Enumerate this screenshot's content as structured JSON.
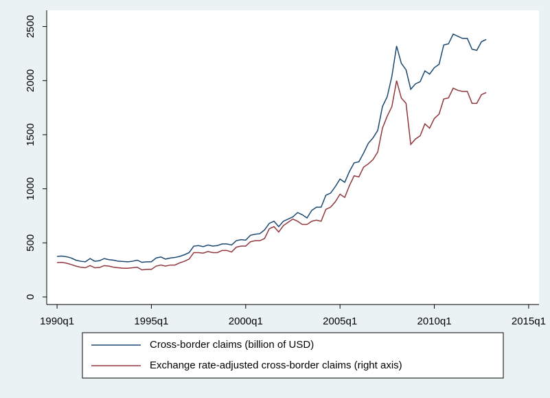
{
  "chart_data": {
    "type": "line",
    "x": [
      1990,
      1990.25,
      1990.5,
      1990.75,
      1991,
      1991.25,
      1991.5,
      1991.75,
      1992,
      1992.25,
      1992.5,
      1992.75,
      1993,
      1993.25,
      1993.5,
      1993.75,
      1994,
      1994.25,
      1994.5,
      1994.75,
      1995,
      1995.25,
      1995.5,
      1995.75,
      1996,
      1996.25,
      1996.5,
      1996.75,
      1997,
      1997.25,
      1997.5,
      1997.75,
      1998,
      1998.25,
      1998.5,
      1998.75,
      1999,
      1999.25,
      1999.5,
      1999.75,
      2000,
      2000.25,
      2000.5,
      2000.75,
      2001,
      2001.25,
      2001.5,
      2001.75,
      2002,
      2002.25,
      2002.5,
      2002.75,
      2003,
      2003.25,
      2003.5,
      2003.75,
      2004,
      2004.25,
      2004.5,
      2004.75,
      2005,
      2005.25,
      2005.5,
      2005.75,
      2006,
      2006.25,
      2006.5,
      2006.75,
      2007,
      2007.25,
      2007.5,
      2007.75,
      2008,
      2008.25,
      2008.5,
      2008.75,
      2009,
      2009.25,
      2009.5,
      2009.75,
      2010,
      2010.25,
      2010.5,
      2010.75,
      2011,
      2011.25,
      2011.5,
      2011.75,
      2012,
      2012.25,
      2012.5,
      2012.75
    ],
    "series": [
      {
        "name": "Cross-border claims (billion of USD)",
        "color": "#1a476f",
        "values": [
          375,
          378,
          372,
          360,
          340,
          330,
          325,
          355,
          330,
          335,
          355,
          345,
          340,
          330,
          328,
          325,
          330,
          340,
          320,
          325,
          325,
          360,
          370,
          350,
          360,
          365,
          375,
          390,
          410,
          470,
          475,
          465,
          480,
          470,
          475,
          490,
          490,
          480,
          520,
          530,
          525,
          570,
          580,
          585,
          620,
          680,
          700,
          650,
          700,
          720,
          740,
          780,
          760,
          730,
          800,
          830,
          830,
          940,
          960,
          1020,
          1090,
          1060,
          1160,
          1240,
          1250,
          1330,
          1420,
          1470,
          1540,
          1760,
          1850,
          2040,
          2320,
          2160,
          2100,
          1920,
          1970,
          1990,
          2090,
          2060,
          2120,
          2150,
          2330,
          2340,
          2430,
          2410,
          2390,
          2390,
          2290,
          2280,
          2360,
          2380
        ]
      },
      {
        "name": "Exchange rate-adjusted cross-border claims (right axis)",
        "color": "#90353b",
        "values": [
          318,
          320,
          312,
          300,
          285,
          275,
          270,
          290,
          270,
          272,
          290,
          285,
          275,
          270,
          265,
          265,
          270,
          275,
          250,
          255,
          255,
          285,
          295,
          285,
          295,
          295,
          315,
          330,
          350,
          410,
          410,
          405,
          420,
          410,
          410,
          430,
          430,
          415,
          460,
          470,
          470,
          510,
          520,
          520,
          540,
          630,
          650,
          600,
          660,
          690,
          720,
          700,
          670,
          670,
          700,
          710,
          700,
          810,
          830,
          880,
          950,
          920,
          1030,
          1120,
          1110,
          1200,
          1230,
          1270,
          1340,
          1560,
          1670,
          1760,
          2000,
          1840,
          1790,
          1410,
          1460,
          1490,
          1600,
          1560,
          1650,
          1690,
          1830,
          1840,
          1930,
          1910,
          1900,
          1900,
          1790,
          1790,
          1870,
          1890
        ]
      }
    ],
    "xlim": [
      1989.45,
      2015.55
    ],
    "xticks": [
      {
        "value": 1990,
        "label": "1990q1"
      },
      {
        "value": 1995,
        "label": "1995q1"
      },
      {
        "value": 2000,
        "label": "2000q1"
      },
      {
        "value": 2005,
        "label": "2005q1"
      },
      {
        "value": 2010,
        "label": "2010q1"
      },
      {
        "value": 2015,
        "label": "2015q1"
      }
    ],
    "ylim": [
      -70,
      2650
    ],
    "yticks": [
      0,
      500,
      1000,
      1500,
      2000,
      2500
    ],
    "grid": false,
    "legend": "bottom"
  }
}
